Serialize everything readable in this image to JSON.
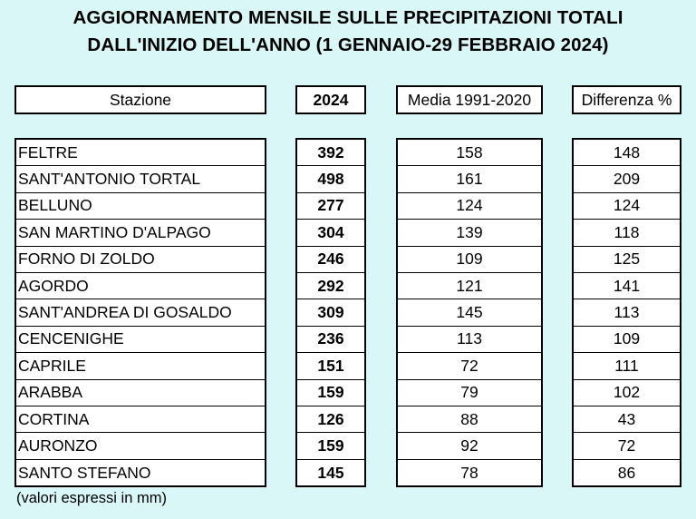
{
  "title": {
    "line1": "AGGIORNAMENTO MENSILE SULLE PRECIPITAZIONI TOTALI",
    "line2": "DALL'INIZIO DELL'ANNO (1 GENNAIO-29 FEBBRAIO 2024)"
  },
  "headers": {
    "station": "Stazione",
    "year": "2024",
    "mean": "Media 1991-2020",
    "diff": "Differenza %"
  },
  "rows": [
    {
      "station": "FELTRE",
      "year": "392",
      "mean": "158",
      "diff": "148"
    },
    {
      "station": "SANT'ANTONIO TORTAL",
      "year": "498",
      "mean": "161",
      "diff": "209"
    },
    {
      "station": "BELLUNO",
      "year": "277",
      "mean": "124",
      "diff": "124"
    },
    {
      "station": "SAN MARTINO D'ALPAGO",
      "year": "304",
      "mean": "139",
      "diff": "118"
    },
    {
      "station": "FORNO DI ZOLDO",
      "year": "246",
      "mean": "109",
      "diff": "125"
    },
    {
      "station": "AGORDO",
      "year": "292",
      "mean": "121",
      "diff": "141"
    },
    {
      "station": "SANT'ANDREA DI GOSALDO",
      "year": "309",
      "mean": "145",
      "diff": "113"
    },
    {
      "station": "CENCENIGHE",
      "year": "236",
      "mean": "113",
      "diff": "109"
    },
    {
      "station": "CAPRILE",
      "year": "151",
      "mean": "72",
      "diff": "111"
    },
    {
      "station": "ARABBA",
      "year": "159",
      "mean": "79",
      "diff": "102"
    },
    {
      "station": "CORTINA",
      "year": "126",
      "mean": "88",
      "diff": "43"
    },
    {
      "station": "AURONZO",
      "year": "159",
      "mean": "92",
      "diff": "72"
    },
    {
      "station": "SANTO STEFANO",
      "year": "145",
      "mean": "78",
      "diff": "86"
    }
  ],
  "note": "(valori espressi in mm)",
  "colors": {
    "background": "#d9f7f7",
    "cell": "#ffffff",
    "border": "#000000"
  }
}
